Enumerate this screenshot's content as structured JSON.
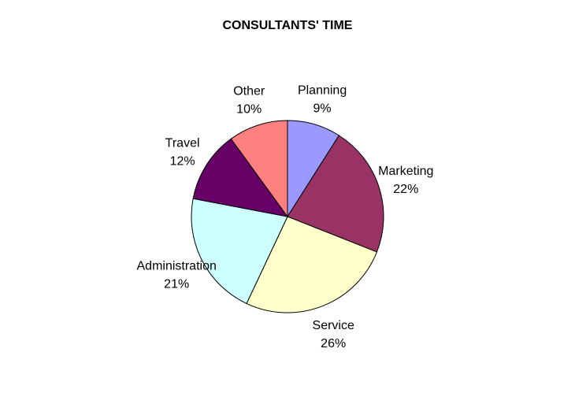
{
  "chart_data": {
    "type": "pie",
    "title": "CONSULTANTS' TIME",
    "slices": [
      {
        "label": "Planning",
        "value": 9,
        "value_text": "9%",
        "color": "#9999FF",
        "label_side": "right"
      },
      {
        "label": "Marketing",
        "value": 22,
        "value_text": "22%",
        "color": "#993366",
        "label_side": "right"
      },
      {
        "label": "Service",
        "value": 26,
        "value_text": "26%",
        "color": "#FFFFCC",
        "label_side": "right"
      },
      {
        "label": "Administration",
        "value": 21,
        "value_text": "21%",
        "color": "#CCFFFF",
        "label_side": "left"
      },
      {
        "label": "Travel",
        "value": 12,
        "value_text": "12%",
        "color": "#660066",
        "label_side": "left"
      },
      {
        "label": "Other",
        "value": 10,
        "value_text": "10%",
        "color": "#FF8080",
        "label_side": "left"
      }
    ],
    "legend": "none",
    "start_angle": "top",
    "direction": "clockwise"
  }
}
